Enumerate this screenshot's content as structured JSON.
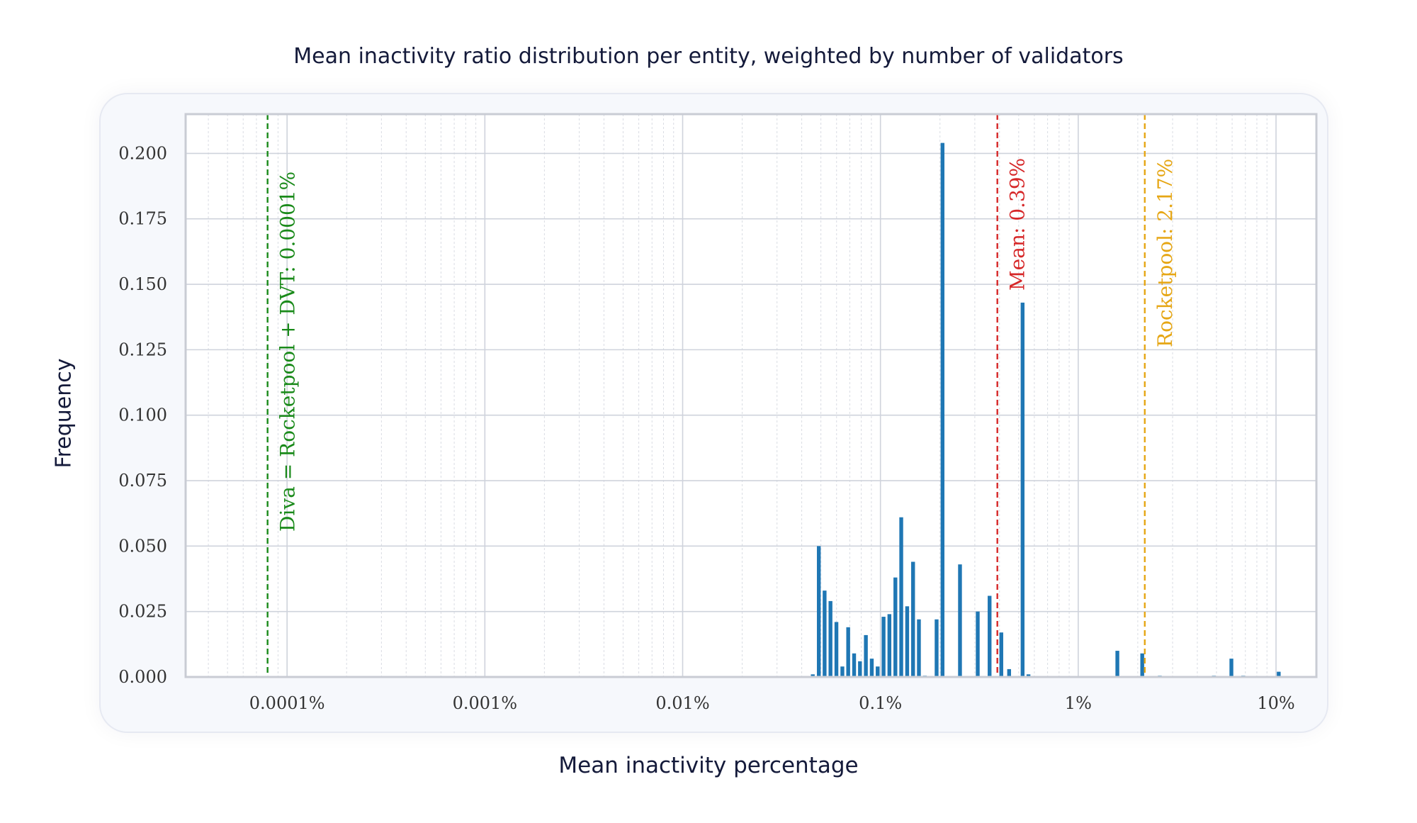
{
  "chart_data": {
    "type": "bar",
    "title": "Mean inactivity ratio distribution per entity, weighted by number of validators",
    "xlabel": "Mean inactivity percentage",
    "ylabel": "Frequency",
    "xscale": "log",
    "xlim_percent": [
      3.07e-05,
      16
    ],
    "ylim": [
      0,
      0.215
    ],
    "grid": true,
    "y_ticks": [
      {
        "value": 0.0,
        "label": "0.000"
      },
      {
        "value": 0.025,
        "label": "0.025"
      },
      {
        "value": 0.05,
        "label": "0.050"
      },
      {
        "value": 0.075,
        "label": "0.075"
      },
      {
        "value": 0.1,
        "label": "0.100"
      },
      {
        "value": 0.125,
        "label": "0.125"
      },
      {
        "value": 0.15,
        "label": "0.150"
      },
      {
        "value": 0.175,
        "label": "0.175"
      },
      {
        "value": 0.2,
        "label": "0.200"
      }
    ],
    "x_ticks": [
      {
        "value": 0.0001,
        "label": "0.0001%"
      },
      {
        "value": 0.001,
        "label": "0.001%"
      },
      {
        "value": 0.01,
        "label": "0.01%"
      },
      {
        "value": 0.1,
        "label": "0.1%"
      },
      {
        "value": 1,
        "label": "1%"
      },
      {
        "value": 10,
        "label": "10%"
      }
    ],
    "bars": [
      {
        "x": 0.0455,
        "y": 0.001
      },
      {
        "x": 0.0488,
        "y": 0.05
      },
      {
        "x": 0.0522,
        "y": 0.033
      },
      {
        "x": 0.0559,
        "y": 0.029
      },
      {
        "x": 0.0599,
        "y": 0.021
      },
      {
        "x": 0.0642,
        "y": 0.004
      },
      {
        "x": 0.0687,
        "y": 0.019
      },
      {
        "x": 0.0736,
        "y": 0.009
      },
      {
        "x": 0.0788,
        "y": 0.006
      },
      {
        "x": 0.0844,
        "y": 0.016
      },
      {
        "x": 0.0904,
        "y": 0.007
      },
      {
        "x": 0.0968,
        "y": 0.004
      },
      {
        "x": 0.1037,
        "y": 0.023
      },
      {
        "x": 0.111,
        "y": 0.024
      },
      {
        "x": 0.119,
        "y": 0.038
      },
      {
        "x": 0.1274,
        "y": 0.061
      },
      {
        "x": 0.1365,
        "y": 0.027
      },
      {
        "x": 0.1462,
        "y": 0.044
      },
      {
        "x": 0.1565,
        "y": 0.022
      },
      {
        "x": 0.1677,
        "y": 0.0005
      },
      {
        "x": 0.1923,
        "y": 0.022
      },
      {
        "x": 0.206,
        "y": 0.204
      },
      {
        "x": 0.2525,
        "y": 0.043
      },
      {
        "x": 0.3104,
        "y": 0.025
      },
      {
        "x": 0.3563,
        "y": 0.031
      },
      {
        "x": 0.4084,
        "y": 0.017
      },
      {
        "x": 0.4473,
        "y": 0.003
      },
      {
        "x": 0.5232,
        "y": 0.143
      },
      {
        "x": 0.5603,
        "y": 0.001
      },
      {
        "x": 1.577,
        "y": 0.01
      },
      {
        "x": 2.107,
        "y": 0.009
      },
      {
        "x": 2.585,
        "y": 0.0005
      },
      {
        "x": 4.851,
        "y": 0.0005
      },
      {
        "x": 5.948,
        "y": 0.007
      },
      {
        "x": 6.823,
        "y": 0.0005
      },
      {
        "x": 10.32,
        "y": 0.002
      }
    ],
    "vlines": [
      {
        "x": 7.97e-05,
        "label": "Diva = Rocketpool + DVT: 0.0001%",
        "color": "#1a8a1a"
      },
      {
        "x": 0.39,
        "label": "Mean: 0.39%",
        "color": "#d62728"
      },
      {
        "x": 2.17,
        "label": "Rocketpool: 2.17%",
        "color": "#e6a614"
      }
    ],
    "bar_color": "#1f77b4"
  }
}
